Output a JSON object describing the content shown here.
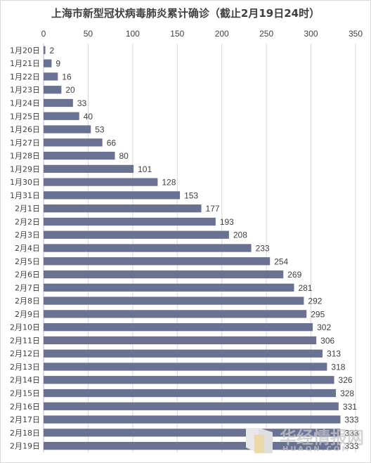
{
  "chart_data": {
    "type": "bar",
    "orientation": "horizontal",
    "title": "上海市新型冠状病毒肺炎累计确诊（截止2月19日24时）",
    "categories": [
      "1月20日",
      "1月21日",
      "1月22日",
      "1月23日",
      "1月24日",
      "1月25日",
      "1月26日",
      "1月27日",
      "1月28日",
      "1月29日",
      "1月30日",
      "1月31日",
      "2月1日",
      "2月2日",
      "2月3日",
      "2月4日",
      "2月5日",
      "2月6日",
      "2月7日",
      "2月8日",
      "2月9日",
      "2月10日",
      "2月11日",
      "2月12日",
      "2月13日",
      "2月14日",
      "2月15日",
      "2月16日",
      "2月17日",
      "2月18日",
      "2月19日"
    ],
    "values": [
      2,
      9,
      16,
      20,
      33,
      40,
      53,
      66,
      80,
      101,
      128,
      153,
      177,
      193,
      208,
      233,
      254,
      269,
      281,
      292,
      295,
      302,
      306,
      313,
      318,
      326,
      328,
      331,
      333,
      333,
      333
    ],
    "xlim": [
      0,
      350
    ],
    "xticks": [
      "0",
      "50",
      "100",
      "150",
      "200",
      "250",
      "300",
      "350"
    ],
    "x_axis_position": "top",
    "gridlines": true,
    "data_labels": true,
    "bar_color": "#6a7294",
    "grid_color": "#d9d9d9",
    "text_color": "#404040"
  },
  "watermark": {
    "text": "华经情报网",
    "subtext": "HUAON.COM"
  }
}
